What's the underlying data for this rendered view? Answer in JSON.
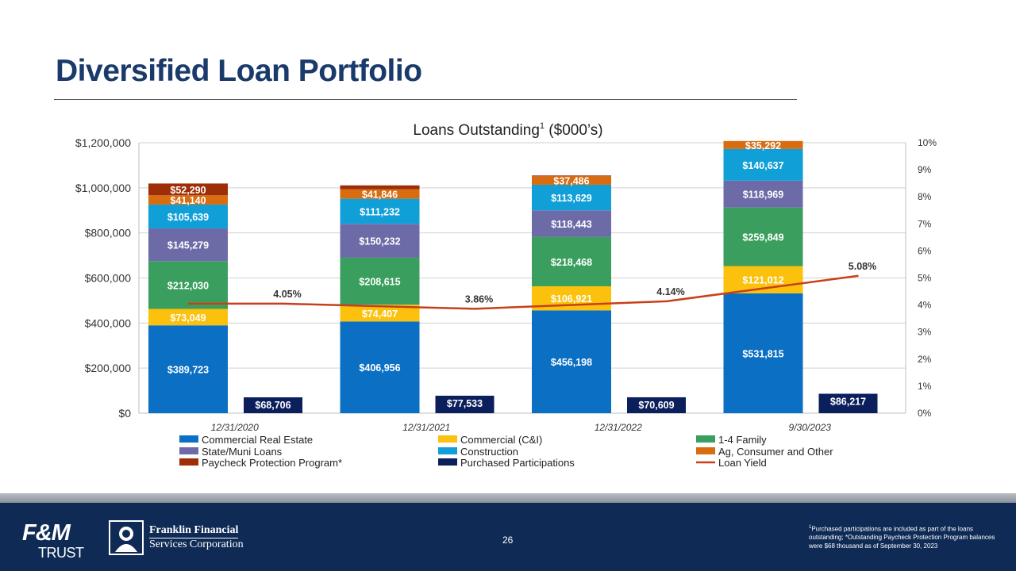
{
  "slide": {
    "title": "Diversified Loan Portfolio",
    "page_number": "26",
    "footnote_marker": "1",
    "footnote": "Purchased participations are included as part of the loans outstanding; *Outstanding Paycheck Protection Program balances were $68 thousand as of September 30, 2023"
  },
  "logos": {
    "fm_top": "F&M",
    "fm_bottom": "TRUST",
    "franklin_line1": "Franklin Financial",
    "franklin_line2": "Services Corporation"
  },
  "chart_data": {
    "type": "bar",
    "title": "Loans Outstanding",
    "title_superscript": "1",
    "title_suffix": " ($000’s)",
    "stacked": true,
    "categories": [
      "12/31/2020",
      "12/31/2021",
      "12/31/2022",
      "9/30/2023"
    ],
    "series": [
      {
        "name": "Commercial Real Estate",
        "color": "#0b6fc4",
        "values": [
          389723,
          406956,
          456198,
          531815
        ],
        "labels": [
          "$389,723",
          "$406,956",
          "$456,198",
          "$531,815"
        ]
      },
      {
        "name": "Commercial (C&I)",
        "color": "#fbc10c",
        "values": [
          73049,
          74407,
          106921,
          121012
        ],
        "labels": [
          "$73,049",
          "$74,407",
          "$106,921",
          "$121,012"
        ]
      },
      {
        "name": "1-4 Family",
        "color": "#3a9f5e",
        "values": [
          212030,
          208615,
          218468,
          259849
        ],
        "labels": [
          "$212,030",
          "$208,615",
          "$218,468",
          "$259,849"
        ]
      },
      {
        "name": "State/Muni Loans",
        "color": "#6d6ba7",
        "values": [
          145279,
          150232,
          118443,
          118969
        ],
        "labels": [
          "$145,279",
          "$150,232",
          "$118,443",
          "$118,969"
        ]
      },
      {
        "name": "Construction",
        "color": "#119fd8",
        "values": [
          105639,
          111232,
          113629,
          140637
        ],
        "labels": [
          "$105,639",
          "$111,232",
          "$113,629",
          "$140,637"
        ]
      },
      {
        "name": "Ag, Consumer and Other",
        "color": "#d86c0e",
        "values": [
          41140,
          41846,
          37486,
          35292
        ],
        "labels": [
          "$41,140",
          "$41,846",
          "$37,486",
          "$35,292"
        ]
      },
      {
        "name": "Paycheck Protection Program*",
        "color": "#9e2e08",
        "values": [
          52290,
          17600,
          3600,
          68
        ],
        "labels": [
          "$52,290",
          "",
          "",
          ""
        ]
      }
    ],
    "side_series": {
      "name": "Purchased Participations",
      "color": "#0a1f5c",
      "values": [
        68706,
        77533,
        70609,
        86217
      ],
      "labels": [
        "$68,706",
        "$77,533",
        "$70,609",
        "$86,217"
      ]
    },
    "line_series": {
      "name": "Loan Yield",
      "color": "#c8401a",
      "values": [
        4.05,
        3.86,
        4.14,
        5.08
      ],
      "labels": [
        "4.05%",
        "3.86%",
        "4.14%",
        "5.08%"
      ]
    },
    "y_axis": {
      "min": 0,
      "max": 1200000,
      "ticks": [
        "$0",
        "$200,000",
        "$400,000",
        "$600,000",
        "$800,000",
        "$1,000,000",
        "$1,200,000"
      ]
    },
    "y2_axis": {
      "min": 0,
      "max": 10,
      "ticks": [
        "0%",
        "1%",
        "2%",
        "3%",
        "4%",
        "5%",
        "6%",
        "7%",
        "8%",
        "9%",
        "10%"
      ]
    },
    "legend_order": [
      [
        "Commercial Real Estate",
        "Commercial (C&I)",
        "1-4 Family"
      ],
      [
        "State/Muni Loans",
        "Construction",
        "Ag, Consumer and Other"
      ],
      [
        "Paycheck Protection Program*",
        "Purchased Participations",
        "Loan Yield"
      ]
    ],
    "grid": true,
    "legend_position": "bottom"
  }
}
